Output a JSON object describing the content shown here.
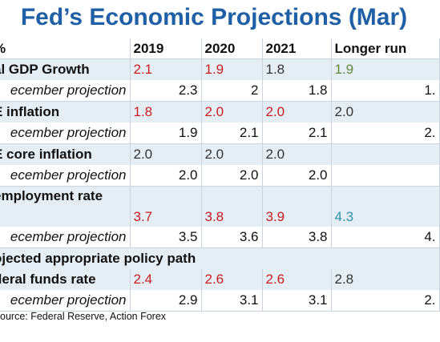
{
  "title": "Fed’s Economic Projections (Mar)",
  "header": {
    "label": "%",
    "cols": [
      "2019",
      "2020",
      "2021",
      "Longer run"
    ]
  },
  "rows": {
    "gdp": {
      "label": "al GDP Growth",
      "values": [
        "2.1",
        "1.9",
        "1.8",
        "1.9"
      ]
    },
    "gdp_dec": {
      "label": "ecember projection",
      "values": [
        "2.3",
        "2",
        "1.8",
        "1."
      ]
    },
    "pce": {
      "label": "E inflation",
      "values": [
        "1.8",
        "2.0",
        "2.0",
        "2.0"
      ]
    },
    "pce_dec": {
      "label": "ecember projection",
      "values": [
        "1.9",
        "2.1",
        "2.1",
        "2."
      ]
    },
    "core": {
      "label": "E core inflation",
      "values": [
        "2.0",
        "2.0",
        "2.0",
        ""
      ]
    },
    "core_dec": {
      "label": "ecember projection",
      "values": [
        "2.0",
        "2.0",
        "2.0",
        ""
      ]
    },
    "unemp": {
      "label": "employment rate",
      "values": [
        "3.7",
        "3.8",
        "3.9",
        "4.3"
      ]
    },
    "unemp_dec": {
      "label": "ecember projection",
      "values": [
        "3.5",
        "3.6",
        "3.8",
        "4."
      ]
    },
    "policy": {
      "label": "ojected appropriate policy path"
    },
    "ffr": {
      "label": "deral funds rate",
      "values": [
        "2.4",
        "2.6",
        "2.6",
        "2.8"
      ]
    },
    "ffr_dec": {
      "label": "ecember projection",
      "values": [
        "2.9",
        "3.1",
        "3.1",
        "2."
      ]
    }
  },
  "source": "ource: Federal Reserve, Action Forex",
  "colors": {
    "title": "#1f5fa6",
    "row_shade": "#e5edf5",
    "red": "#c81e1e",
    "green": "#5f8a3c",
    "teal": "#2f93a6"
  }
}
